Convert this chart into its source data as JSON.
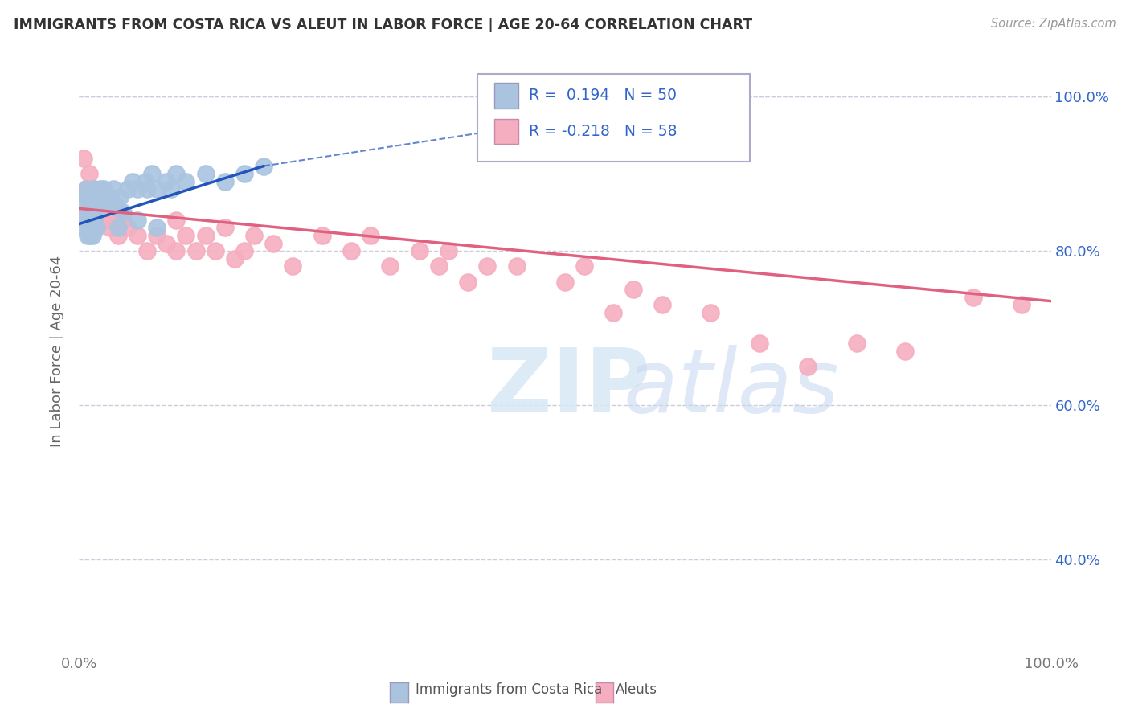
{
  "title": "IMMIGRANTS FROM COSTA RICA VS ALEUT IN LABOR FORCE | AGE 20-64 CORRELATION CHART",
  "source": "Source: ZipAtlas.com",
  "ylabel": "In Labor Force | Age 20-64",
  "xlim": [
    0.0,
    1.0
  ],
  "ylim": [
    0.28,
    1.06
  ],
  "yticks": [
    0.4,
    0.6,
    0.8,
    1.0
  ],
  "ytick_labels": [
    "40.0%",
    "60.0%",
    "80.0%",
    "100.0%"
  ],
  "xtick_labels": [
    "0.0%",
    "100.0%"
  ],
  "blue_color": "#aac4e0",
  "pink_color": "#f5aec0",
  "line_blue": "#2255bb",
  "line_pink": "#e06080",
  "legend_text_color": "#3366cc",
  "grid_color": "#ccccdd",
  "background_color": "#ffffff",
  "legend_r1": "R =  0.194",
  "legend_n1": "N = 50",
  "legend_r2": "R = -0.218",
  "legend_n2": "N = 58",
  "blue_scatter_x": [
    0.005,
    0.006,
    0.007,
    0.007,
    0.008,
    0.008,
    0.009,
    0.009,
    0.01,
    0.01,
    0.011,
    0.011,
    0.012,
    0.012,
    0.013,
    0.013,
    0.014,
    0.014,
    0.015,
    0.015,
    0.016,
    0.017,
    0.018,
    0.02,
    0.022,
    0.025,
    0.03,
    0.035,
    0.038,
    0.042,
    0.05,
    0.055,
    0.06,
    0.068,
    0.07,
    0.075,
    0.08,
    0.09,
    0.095,
    0.1,
    0.11,
    0.13,
    0.15,
    0.17,
    0.19,
    0.04,
    0.06,
    0.08,
    0.025,
    0.045
  ],
  "blue_scatter_y": [
    0.83,
    0.86,
    0.84,
    0.88,
    0.85,
    0.87,
    0.82,
    0.85,
    0.86,
    0.83,
    0.84,
    0.82,
    0.85,
    0.87,
    0.83,
    0.86,
    0.84,
    0.82,
    0.85,
    0.88,
    0.84,
    0.86,
    0.83,
    0.86,
    0.88,
    0.87,
    0.87,
    0.88,
    0.86,
    0.87,
    0.88,
    0.89,
    0.88,
    0.89,
    0.88,
    0.9,
    0.88,
    0.89,
    0.88,
    0.9,
    0.89,
    0.9,
    0.89,
    0.9,
    0.91,
    0.83,
    0.84,
    0.83,
    0.88,
    0.85
  ],
  "pink_scatter_x": [
    0.005,
    0.007,
    0.008,
    0.01,
    0.01,
    0.012,
    0.013,
    0.015,
    0.016,
    0.018,
    0.02,
    0.022,
    0.025,
    0.03,
    0.032,
    0.035,
    0.038,
    0.04,
    0.045,
    0.05,
    0.06,
    0.07,
    0.08,
    0.09,
    0.1,
    0.1,
    0.11,
    0.12,
    0.13,
    0.14,
    0.15,
    0.16,
    0.17,
    0.18,
    0.2,
    0.22,
    0.25,
    0.28,
    0.3,
    0.32,
    0.35,
    0.37,
    0.38,
    0.4,
    0.42,
    0.45,
    0.5,
    0.52,
    0.55,
    0.57,
    0.6,
    0.65,
    0.7,
    0.75,
    0.8,
    0.85,
    0.92,
    0.97
  ],
  "pink_scatter_y": [
    0.92,
    0.88,
    0.85,
    0.9,
    0.87,
    0.88,
    0.85,
    0.84,
    0.86,
    0.83,
    0.87,
    0.86,
    0.84,
    0.87,
    0.83,
    0.84,
    0.85,
    0.82,
    0.84,
    0.83,
    0.82,
    0.8,
    0.82,
    0.81,
    0.84,
    0.8,
    0.82,
    0.8,
    0.82,
    0.8,
    0.83,
    0.79,
    0.8,
    0.82,
    0.81,
    0.78,
    0.82,
    0.8,
    0.82,
    0.78,
    0.8,
    0.78,
    0.8,
    0.76,
    0.78,
    0.78,
    0.76,
    0.78,
    0.72,
    0.75,
    0.73,
    0.72,
    0.68,
    0.65,
    0.68,
    0.67,
    0.74,
    0.73
  ],
  "blue_line_x": [
    0.0,
    0.19
  ],
  "pink_line_x": [
    0.0,
    1.0
  ],
  "blue_line_y_start": 0.835,
  "blue_line_y_end": 0.91,
  "pink_line_y_start": 0.855,
  "pink_line_y_end": 0.735
}
